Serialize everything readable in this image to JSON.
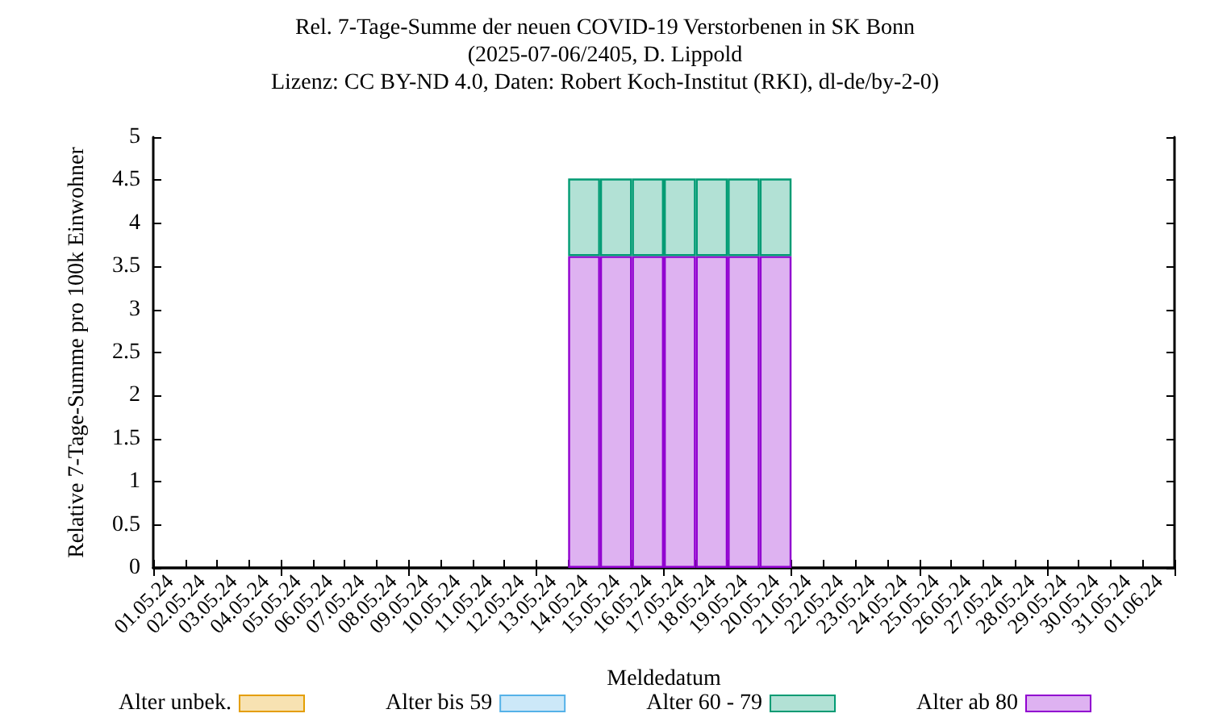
{
  "chart_data": {
    "type": "bar",
    "stacked": true,
    "title": "Rel. 7-Tage-Summe der neuen COVID-19 Verstorbenen in SK Bonn\n(2025-07-06/2405, D. Lippold\nLizenz: CC BY-ND 4.0, Daten: Robert Koch-Institut (RKI), dl-de/by-2-0)",
    "xlabel": "Meldedatum",
    "ylabel": "Relative 7-Tage-Summe pro 100k Einwohner",
    "categories": [
      "01.05.24",
      "02.05.24",
      "03.05.24",
      "04.05.24",
      "05.05.24",
      "06.05.24",
      "07.05.24",
      "08.05.24",
      "09.05.24",
      "10.05.24",
      "11.05.24",
      "12.05.24",
      "13.05.24",
      "14.05.24",
      "15.05.24",
      "16.05.24",
      "17.05.24",
      "18.05.24",
      "19.05.24",
      "20.05.24",
      "21.05.24",
      "22.05.24",
      "23.05.24",
      "24.05.24",
      "25.05.24",
      "26.05.24",
      "27.05.24",
      "28.05.24",
      "29.05.24",
      "30.05.24",
      "31.05.24",
      "01.06.24"
    ],
    "series": [
      {
        "name": "Alter ab 80",
        "color": "#deb2f1",
        "values": [
          0,
          0,
          0,
          0,
          0,
          0,
          0,
          0,
          0,
          0,
          0,
          0,
          0,
          3.62,
          3.62,
          3.62,
          3.62,
          3.62,
          3.62,
          3.62,
          0,
          0,
          0,
          0,
          0,
          0,
          0,
          0,
          0,
          0,
          0,
          0
        ]
      },
      {
        "name": "Alter 60 - 79",
        "color": "#b2e1d5",
        "values": [
          0,
          0,
          0,
          0,
          0,
          0,
          0,
          0,
          0,
          0,
          0,
          0,
          0,
          0.9,
          0.9,
          0.9,
          0.9,
          0.9,
          0.9,
          0.9,
          0,
          0,
          0,
          0,
          0,
          0,
          0,
          0,
          0,
          0,
          0,
          0
        ]
      },
      {
        "name": "Alter bis 59",
        "color": "#cce8f8",
        "values": [
          0,
          0,
          0,
          0,
          0,
          0,
          0,
          0,
          0,
          0,
          0,
          0,
          0,
          0,
          0,
          0,
          0,
          0,
          0,
          0,
          0,
          0,
          0,
          0,
          0,
          0,
          0,
          0,
          0,
          0,
          0,
          0
        ]
      },
      {
        "name": "Alter unbek.",
        "color": "#f7e2b2",
        "values": [
          0,
          0,
          0,
          0,
          0,
          0,
          0,
          0,
          0,
          0,
          0,
          0,
          0,
          0,
          0,
          0,
          0,
          0,
          0,
          0,
          0,
          0,
          0,
          0,
          0,
          0,
          0,
          0,
          0,
          0,
          0,
          0
        ]
      }
    ],
    "ylim": [
      0,
      5
    ],
    "yticks": [
      0,
      0.5,
      1,
      1.5,
      2,
      2.5,
      3,
      3.5,
      4,
      4.5,
      5
    ],
    "grid": false,
    "legend": "bottom"
  }
}
